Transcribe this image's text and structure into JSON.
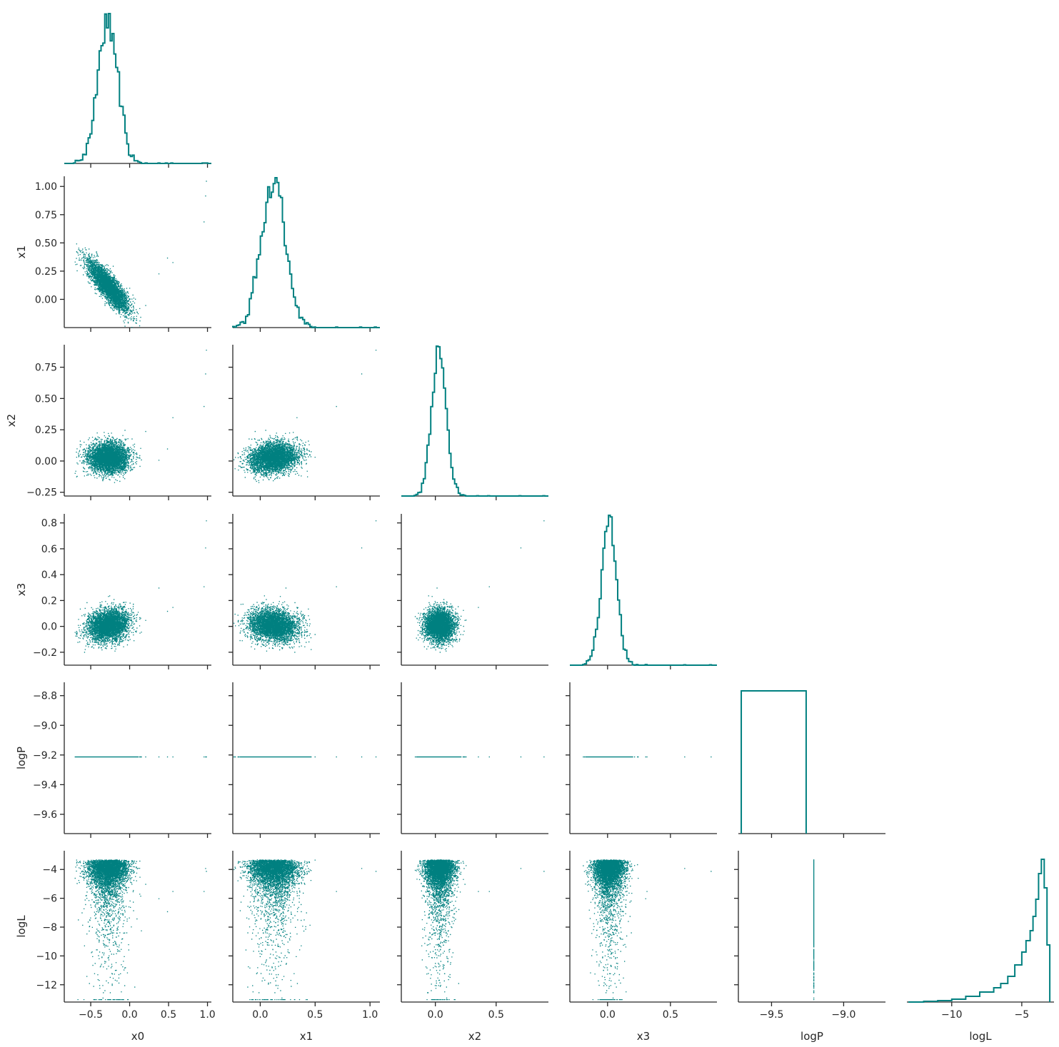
{
  "chart_data": {
    "type": "scatter",
    "title": "",
    "kind": "corner-plot (pair plot: histograms on diagonal, scatter below diagonal)",
    "color": "#008080",
    "grid": false,
    "variables": [
      "x0",
      "x1",
      "x2",
      "x3",
      "logP",
      "logL"
    ],
    "axis_ranges": {
      "x0": [
        -0.84,
        1.05
      ],
      "x1": [
        -0.25,
        1.09
      ],
      "x2": [
        -0.28,
        0.93
      ],
      "x3": [
        -0.3,
        0.87
      ],
      "logP": [
        -9.73,
        -8.71
      ],
      "logL": [
        -13.2,
        -2.7
      ]
    },
    "ticks": {
      "x0": {
        "values": [
          -0.5,
          0.0,
          0.5,
          1.0
        ],
        "labels": [
          "−0.5",
          "0.0",
          "0.5",
          "1.0"
        ]
      },
      "x1": {
        "values": [
          0.0,
          0.5,
          1.0
        ],
        "labels": [
          "0.0",
          "0.5",
          "1.0"
        ]
      },
      "x2": {
        "values": [
          0.0,
          0.5
        ],
        "labels": [
          "0.0",
          "0.5"
        ]
      },
      "x3": {
        "values": [
          0.0,
          0.5
        ],
        "labels": [
          "0.0",
          "0.5"
        ]
      },
      "logP": {
        "values": [
          -9.5,
          -9.0
        ],
        "labels": [
          "−9.5",
          "−9.0"
        ]
      },
      "logL": {
        "values": [
          -10,
          -5
        ],
        "labels": [
          "−10",
          "−5"
        ]
      }
    },
    "y_ticks": {
      "x1": {
        "values": [
          0.0,
          0.25,
          0.5,
          0.75,
          1.0
        ],
        "labels": [
          "0.00",
          "0.25",
          "0.50",
          "0.75",
          "1.00"
        ]
      },
      "x2": {
        "values": [
          -0.25,
          0.0,
          0.25,
          0.5,
          0.75
        ],
        "labels": [
          "−0.25",
          "0.00",
          "0.25",
          "0.50",
          "0.75"
        ]
      },
      "x3": {
        "values": [
          -0.2,
          0.0,
          0.2,
          0.4,
          0.6,
          0.8
        ],
        "labels": [
          "−0.2",
          "0.0",
          "0.2",
          "0.4",
          "0.6",
          "0.8"
        ]
      },
      "logP": {
        "values": [
          -9.6,
          -9.4,
          -9.2,
          -9.0,
          -8.8
        ],
        "labels": [
          "−9.6",
          "−9.4",
          "−9.2",
          "−9.0",
          "−8.8"
        ]
      },
      "logL": {
        "values": [
          -12,
          -10,
          -8,
          -6,
          -4
        ],
        "labels": [
          "−12",
          "−10",
          "−8",
          "−6",
          "−4"
        ]
      }
    },
    "distributions": {
      "x0": {
        "mean": -0.28,
        "std": 0.13
      },
      "x1": {
        "mean": 0.12,
        "std": 0.11
      },
      "x2": {
        "mean": 0.03,
        "std": 0.06
      },
      "x3": {
        "mean": 0.01,
        "std": 0.06
      },
      "logP": {
        "value": -9.21
      },
      "logL": {
        "mode": -3.8
      }
    },
    "correlations": {
      "x0_x1": -0.85,
      "x1_x2": 0.3,
      "x0_x3": 0.15
    },
    "outliers": [
      {
        "x0": 0.98,
        "x1": 1.05,
        "x2": 0.89,
        "x3": 0.82,
        "logL": -4.1
      },
      {
        "x0": 0.97,
        "x1": 0.92,
        "x2": 0.7,
        "x3": 0.61,
        "logL": -3.9
      },
      {
        "x0": 0.95,
        "x1": 0.69,
        "x2": 0.44,
        "x3": 0.31,
        "logL": -5.5
      },
      {
        "x0": 0.55,
        "x1": 0.33,
        "x2": 0.35,
        "x3": 0.15,
        "logL": -5.5
      },
      {
        "x0": 0.48,
        "x1": 0.37,
        "x2": 0.1,
        "x3": 0.12,
        "logL": -6.9
      },
      {
        "x0": 0.37,
        "x1": 0.23,
        "x2": 0.01,
        "x3": 0.3,
        "logL": -6.0
      },
      {
        "x0": 0.2,
        "x1": -0.05,
        "x2": 0.24,
        "x3": 0.05,
        "logL": -5.0
      }
    ],
    "logL_histogram": {
      "bins_x": [
        -13.1,
        -12.0,
        -11.0,
        -10.0,
        -9.0,
        -8.0,
        -7.0,
        -6.5,
        -6.0,
        -5.5,
        -5.0,
        -4.7,
        -4.4,
        -4.2,
        -4.0,
        -3.8,
        -3.6,
        -3.4,
        -3.2,
        -3.0
      ],
      "relative_heights": [
        0.0,
        0.005,
        0.01,
        0.02,
        0.04,
        0.07,
        0.1,
        0.13,
        0.18,
        0.26,
        0.35,
        0.43,
        0.5,
        0.6,
        0.72,
        0.9,
        1.0,
        0.8,
        0.4,
        0.0
      ]
    }
  }
}
